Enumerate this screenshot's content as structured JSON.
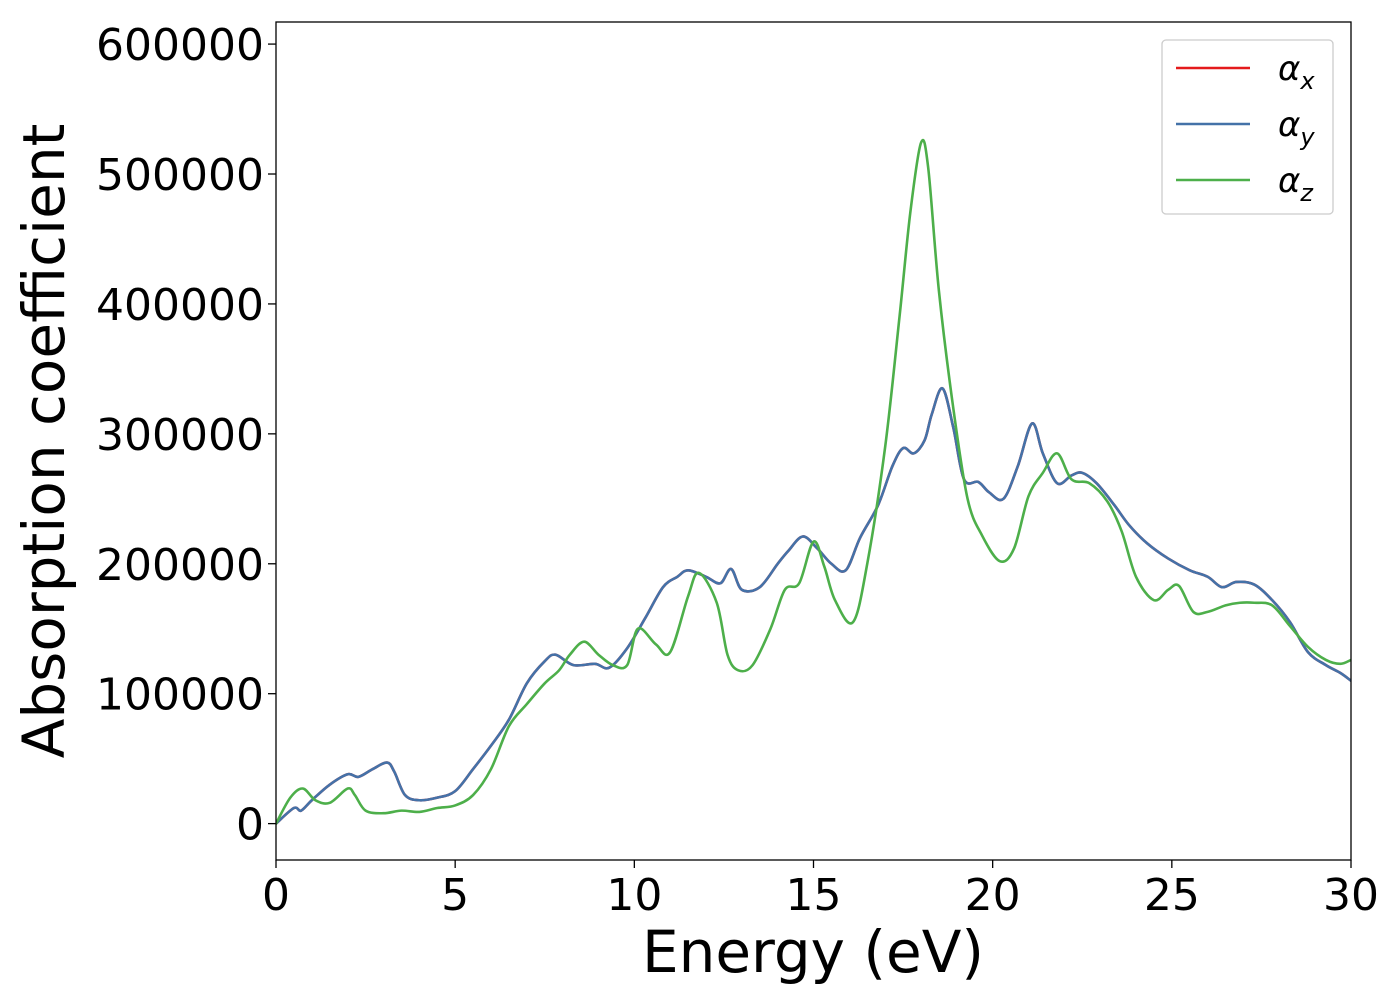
{
  "chart_data": {
    "type": "line",
    "title": "",
    "xlabel": "Energy (eV)",
    "ylabel": "Absorption coefficient",
    "xlim": [
      0,
      30
    ],
    "ylim": [
      -28000,
      617000
    ],
    "xticks": [
      0,
      5,
      10,
      15,
      20,
      25,
      30
    ],
    "yticks": [
      0,
      100000,
      200000,
      300000,
      400000,
      500000,
      600000
    ],
    "grid": false,
    "legend_position": "top-right",
    "series": [
      {
        "name": "αx",
        "label_base": "α",
        "label_sub": "x",
        "color": "#e41a1c",
        "x": [
          0,
          0.5,
          0.7,
          1,
          1.5,
          2,
          2.3,
          2.7,
          3.1,
          3.3,
          3.6,
          4,
          4.5,
          5,
          5.5,
          6,
          6.5,
          7,
          7.5,
          7.8,
          8.3,
          8.9,
          9.3,
          9.8,
          10.3,
          10.8,
          11.2,
          11.5,
          12,
          12.4,
          12.7,
          13,
          13.5,
          14,
          14.3,
          14.7,
          15.1,
          15.5,
          15.9,
          16.3,
          16.8,
          17.2,
          17.5,
          17.8,
          18.1,
          18.3,
          18.6,
          18.9,
          19.2,
          19.6,
          19.9,
          20.3,
          20.7,
          21.1,
          21.4,
          21.8,
          22.2,
          22.5,
          22.9,
          23.4,
          23.8,
          24.3,
          24.9,
          25.5,
          26,
          26.4,
          26.8,
          27.3,
          27.8,
          28.3,
          28.8,
          29.3,
          29.7,
          30
        ],
        "values": [
          0,
          12000,
          10000,
          18000,
          30000,
          38000,
          36000,
          42000,
          47000,
          40000,
          22000,
          18000,
          20000,
          25000,
          42000,
          60000,
          80000,
          108000,
          125000,
          130000,
          122000,
          123000,
          120000,
          135000,
          158000,
          182000,
          190000,
          195000,
          190000,
          185000,
          196000,
          180000,
          182000,
          200000,
          210000,
          221000,
          212000,
          200000,
          195000,
          220000,
          245000,
          275000,
          289000,
          285000,
          295000,
          315000,
          335000,
          305000,
          265000,
          263000,
          255000,
          250000,
          275000,
          308000,
          285000,
          262000,
          268000,
          270000,
          262000,
          245000,
          230000,
          216000,
          204000,
          195000,
          190000,
          182000,
          186000,
          184000,
          172000,
          155000,
          132000,
          122000,
          116000,
          110000
        ]
      },
      {
        "name": "αy",
        "label_base": "α",
        "label_sub": "y",
        "color": "#4472a8",
        "x": [
          0,
          0.5,
          0.7,
          1,
          1.5,
          2,
          2.3,
          2.7,
          3.1,
          3.3,
          3.6,
          4,
          4.5,
          5,
          5.5,
          6,
          6.5,
          7,
          7.5,
          7.8,
          8.3,
          8.9,
          9.3,
          9.8,
          10.3,
          10.8,
          11.2,
          11.5,
          12,
          12.4,
          12.7,
          13,
          13.5,
          14,
          14.3,
          14.7,
          15.1,
          15.5,
          15.9,
          16.3,
          16.8,
          17.2,
          17.5,
          17.8,
          18.1,
          18.3,
          18.6,
          18.9,
          19.2,
          19.6,
          19.9,
          20.3,
          20.7,
          21.1,
          21.4,
          21.8,
          22.2,
          22.5,
          22.9,
          23.4,
          23.8,
          24.3,
          24.9,
          25.5,
          26,
          26.4,
          26.8,
          27.3,
          27.8,
          28.3,
          28.8,
          29.3,
          29.7,
          30
        ],
        "values": [
          0,
          12000,
          10000,
          18000,
          30000,
          38000,
          36000,
          42000,
          47000,
          40000,
          22000,
          18000,
          20000,
          25000,
          42000,
          60000,
          80000,
          108000,
          125000,
          130000,
          122000,
          123000,
          120000,
          135000,
          158000,
          182000,
          190000,
          195000,
          190000,
          185000,
          196000,
          180000,
          182000,
          200000,
          210000,
          221000,
          212000,
          200000,
          195000,
          220000,
          245000,
          275000,
          289000,
          285000,
          295000,
          315000,
          335000,
          305000,
          265000,
          263000,
          255000,
          250000,
          275000,
          308000,
          285000,
          262000,
          268000,
          270000,
          262000,
          245000,
          230000,
          216000,
          204000,
          195000,
          190000,
          182000,
          186000,
          184000,
          172000,
          155000,
          132000,
          122000,
          116000,
          110000
        ]
      },
      {
        "name": "αz",
        "label_base": "α",
        "label_sub": "z",
        "color": "#4daf4a",
        "x": [
          0,
          0.4,
          0.75,
          1.1,
          1.5,
          2,
          2.2,
          2.5,
          3,
          3.5,
          4,
          4.5,
          5,
          5.5,
          6,
          6.5,
          7,
          7.5,
          7.9,
          8.2,
          8.6,
          9,
          9.4,
          9.8,
          10.1,
          10.6,
          11,
          11.5,
          11.8,
          12.3,
          12.6,
          12.9,
          13.3,
          13.8,
          14.2,
          14.6,
          15,
          15.3,
          15.6,
          16.1,
          16.5,
          17,
          17.4,
          17.7,
          18,
          18.2,
          18.5,
          18.9,
          19.3,
          19.7,
          20.2,
          20.6,
          21,
          21.4,
          21.8,
          22.2,
          22.7,
          23.2,
          23.6,
          24,
          24.5,
          24.9,
          25.2,
          25.6,
          26,
          26.5,
          26.9,
          27.3,
          27.8,
          28.3,
          28.8,
          29.3,
          29.7,
          30
        ],
        "values": [
          0,
          20000,
          27000,
          18000,
          16000,
          27000,
          22000,
          10000,
          8000,
          10000,
          9000,
          12000,
          14000,
          22000,
          42000,
          75000,
          92000,
          108000,
          118000,
          130000,
          140000,
          130000,
          122000,
          122000,
          150000,
          138000,
          132000,
          175000,
          193000,
          170000,
          130000,
          118000,
          122000,
          150000,
          180000,
          185000,
          217000,
          198000,
          172000,
          155000,
          200000,
          290000,
          390000,
          470000,
          524000,
          505000,
          410000,
          320000,
          250000,
          222000,
          202000,
          212000,
          252000,
          270000,
          285000,
          265000,
          262000,
          248000,
          225000,
          190000,
          172000,
          180000,
          183000,
          163000,
          163000,
          168000,
          170000,
          170000,
          168000,
          152000,
          136000,
          126000,
          123000,
          126000
        ]
      }
    ]
  }
}
